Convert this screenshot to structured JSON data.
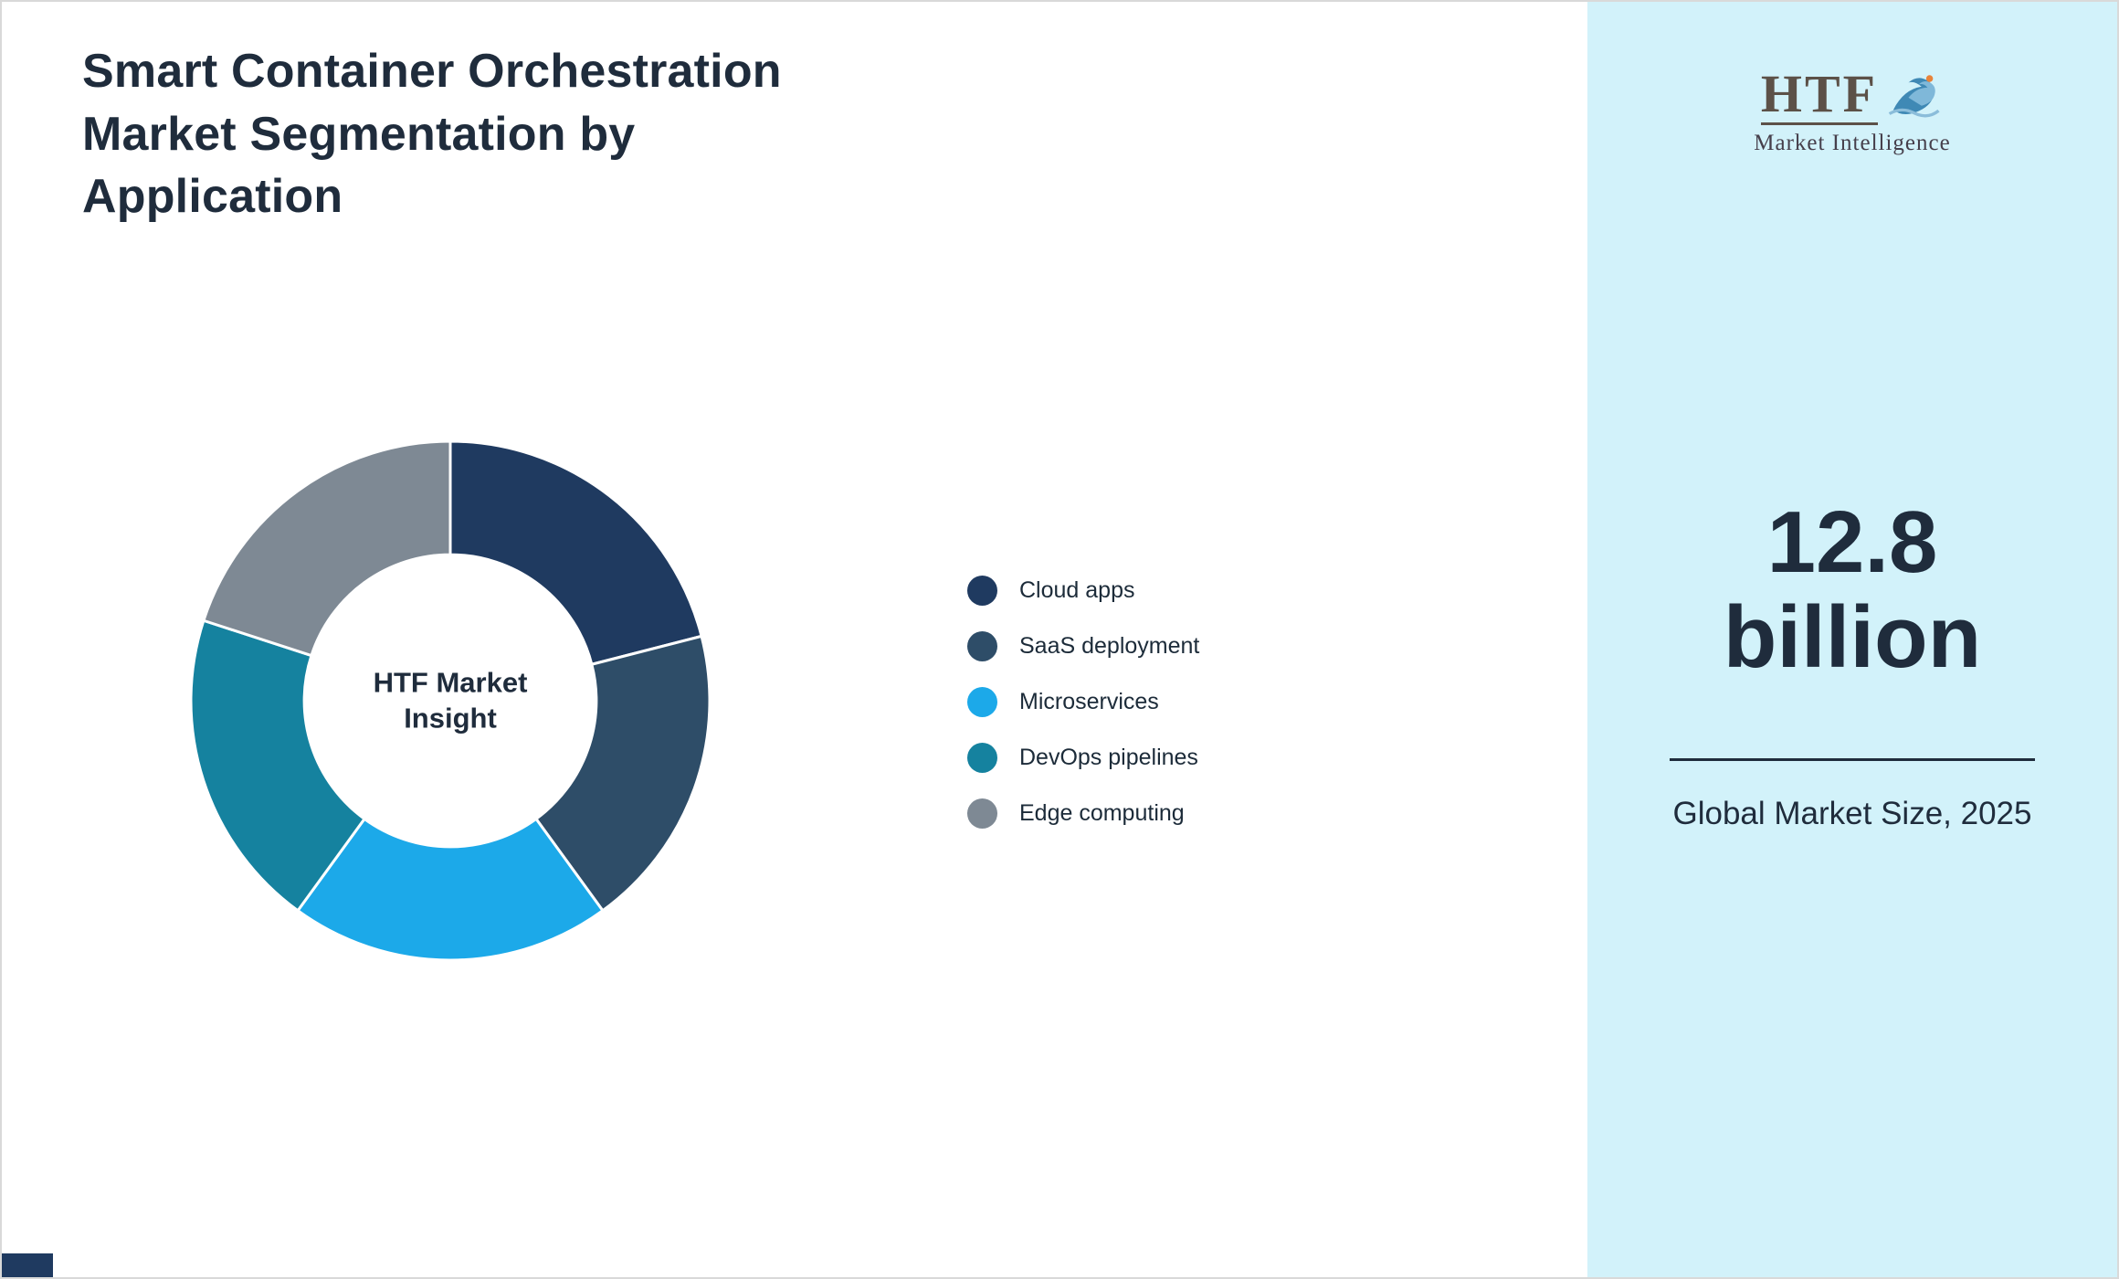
{
  "page": {
    "background": "#ffffff",
    "border_color": "#d9d9d9",
    "text_color": "#1f2c3c"
  },
  "header": {
    "title": "Smart Container Orchestration Market Segmentation by Application"
  },
  "chart_data": {
    "type": "pie",
    "subtype": "donut",
    "title": "Smart Container Orchestration Market Segmentation by Application",
    "center_label": "HTF Market Insight",
    "categories": [
      "Cloud apps",
      "SaaS deployment",
      "Microservices",
      "DevOps pipelines",
      "Edge computing"
    ],
    "values": [
      21,
      19,
      20,
      20,
      20
    ],
    "colors": [
      "#1f3a60",
      "#2e4d68",
      "#1ca9e9",
      "#15829f",
      "#7e8994"
    ],
    "legend_position": "right",
    "start_angle_deg": 0,
    "inner_radius_ratio": 0.563,
    "slice_gap_color": "#ffffff"
  },
  "sidebar": {
    "background": "#d2f2fa",
    "logo": {
      "text": "HTF",
      "subtext": "Market Intelligence",
      "icon": "dolphin-icon"
    },
    "value_line1": "12.8",
    "value_line2": "billion",
    "caption": "Global Market Size, 2025"
  }
}
